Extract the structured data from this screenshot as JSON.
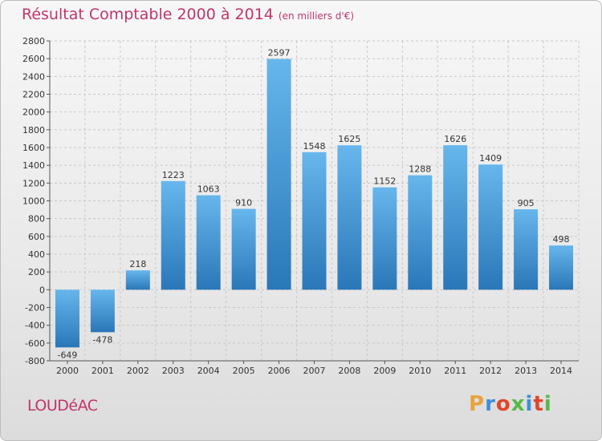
{
  "chart_data": {
    "type": "bar",
    "title": "Résultat Comptable 2000 à 2014",
    "subtitle": "(en milliers d'€)",
    "categories": [
      "2000",
      "2001",
      "2002",
      "2003",
      "2004",
      "2005",
      "2006",
      "2007",
      "2008",
      "2009",
      "2010",
      "2011",
      "2012",
      "2013",
      "2014"
    ],
    "values": [
      -649,
      -478,
      218,
      1223,
      1063,
      910,
      2597,
      1548,
      1625,
      1152,
      1288,
      1626,
      1409,
      905,
      498
    ],
    "ylim": [
      -800,
      2800
    ],
    "yticks": [
      -800,
      -600,
      -400,
      -200,
      0,
      200,
      400,
      600,
      800,
      1000,
      1200,
      1400,
      1600,
      1800,
      2000,
      2200,
      2400,
      2600,
      2800
    ],
    "xlabel": "",
    "ylabel": "",
    "grid": true
  },
  "footer": {
    "town": "LOUDéAC",
    "logo_letters": [
      "P",
      "r",
      "o",
      "x",
      "i",
      "t",
      "i"
    ],
    "logo_colors": [
      "#e8a33c",
      "#3d8fd6",
      "#e0462b",
      "#58b947",
      "#3d8fd6",
      "#e0462b",
      "#58b947"
    ]
  },
  "colors": {
    "title": "#c0356b",
    "bar_light": "#67b6ec",
    "bar_dark": "#2a77b8",
    "grid": "#c8c8c8"
  }
}
